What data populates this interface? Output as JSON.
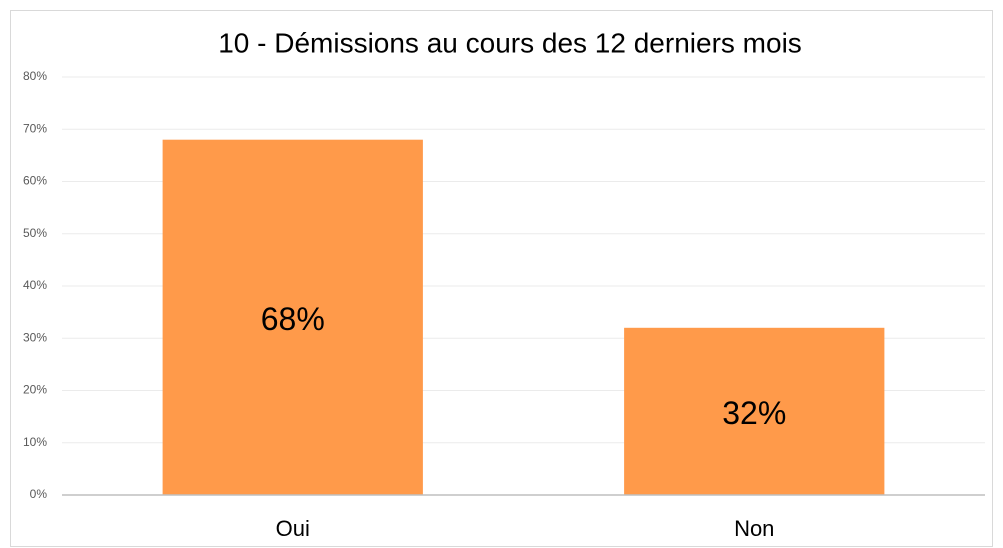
{
  "chart_data": {
    "type": "bar",
    "title": "10 - Démissions au cours des 12 derniers mois",
    "categories": [
      "Oui",
      "Non"
    ],
    "values": [
      68,
      32
    ],
    "value_labels": [
      "68%",
      "32%"
    ],
    "color": "#ff9a4a",
    "ylim": [
      0,
      80
    ],
    "yticks": [
      {
        "value": 0,
        "label": "0%"
      },
      {
        "value": 10,
        "label": "10%"
      },
      {
        "value": 20,
        "label": "20%"
      },
      {
        "value": 30,
        "label": "30%"
      },
      {
        "value": 40,
        "label": "40%"
      },
      {
        "value": 50,
        "label": "50%"
      },
      {
        "value": 60,
        "label": "60%"
      },
      {
        "value": 70,
        "label": "70%"
      },
      {
        "value": 80,
        "label": "80%"
      }
    ],
    "grid": true
  }
}
